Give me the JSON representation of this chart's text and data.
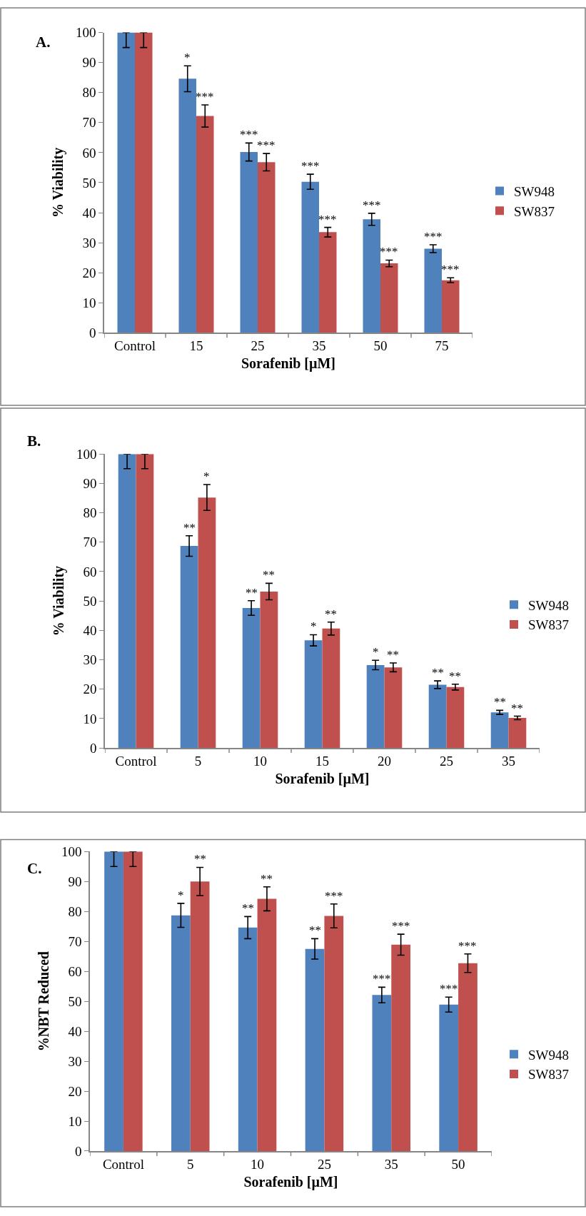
{
  "chart_data": [
    {
      "type": "bar",
      "title": "A.",
      "xlabel": "Sorafenib [µM]",
      "ylabel": "% Viability",
      "categories": [
        "Control",
        "15",
        "25",
        "35",
        "50",
        "75"
      ],
      "ylim": [
        0,
        100
      ],
      "yticks": [
        0,
        10,
        20,
        30,
        40,
        50,
        60,
        70,
        80,
        90,
        100
      ],
      "legend": "right",
      "series": [
        {
          "name": "SW948",
          "color": "#4f81bd",
          "values": [
            100,
            84.6,
            60.2,
            50.3,
            37.8,
            28
          ],
          "errors": [
            [
              95,
              100
            ],
            4.3,
            3,
            2.5,
            2,
            1.3
          ]
        },
        {
          "name": "SW837",
          "color": "#c0504d",
          "values": [
            100,
            72.2,
            56.8,
            33.5,
            23.1,
            17.5
          ],
          "errors": [
            [
              95,
              100
            ],
            3.7,
            2.9,
            1.6,
            1.1,
            0.8
          ]
        }
      ],
      "annotations": [
        {
          "text": "*",
          "x": "15",
          "y": 84.6
        },
        {
          "text": "***",
          "x": "15",
          "y": 72.2
        },
        {
          "text": "***",
          "x": "25",
          "y": 60.2
        },
        {
          "text": "***",
          "x": "25",
          "y": 56.8
        },
        {
          "text": "***",
          "x": "35",
          "y": 50.3
        },
        {
          "text": "***",
          "x": "35",
          "y": 33.5
        },
        {
          "text": "***",
          "x": "50",
          "y": 37.8
        },
        {
          "text": "***",
          "x": "50",
          "y": 23.1
        },
        {
          "text": "***",
          "x": "75",
          "y": 28
        },
        {
          "text": "***",
          "x": "75",
          "y": 17.5
        }
      ]
    },
    {
      "type": "bar",
      "title": "B.",
      "xlabel": "Sorafenib [µM]",
      "ylabel": "% Viability",
      "categories": [
        "Control",
        "5",
        "10",
        "15",
        "20",
        "25",
        "35"
      ],
      "ylim": [
        0,
        100
      ],
      "yticks": [
        0,
        10,
        20,
        30,
        40,
        50,
        60,
        70,
        80,
        90,
        100
      ],
      "legend": "right",
      "series": [
        {
          "name": "SW948",
          "color": "#4f81bd",
          "values": [
            100,
            68.7,
            47.6,
            36.6,
            28.2,
            21.5,
            12.1
          ],
          "errors": [
            [
              95,
              100
            ],
            3.5,
            2.5,
            1.9,
            1.6,
            1.3,
            0.7
          ]
        },
        {
          "name": "SW837",
          "color": "#c0504d",
          "values": [
            100,
            85.2,
            53.2,
            40.6,
            27.4,
            20.7,
            10.2
          ],
          "errors": [
            [
              95,
              100
            ],
            4.4,
            2.8,
            2.2,
            1.5,
            1.0,
            0.6
          ]
        }
      ],
      "annotations": [
        {
          "text": "**",
          "x": "5",
          "y": 68.7
        },
        {
          "text": "*",
          "x": "5",
          "y": 85.2
        },
        {
          "text": "**",
          "x": "10",
          "y": 47.6
        },
        {
          "text": "**",
          "x": "10",
          "y": 53.2
        },
        {
          "text": "*",
          "x": "15",
          "y": 36.6
        },
        {
          "text": "**",
          "x": "15",
          "y": 40.6
        },
        {
          "text": "*",
          "x": "20",
          "y": 28.2
        },
        {
          "text": "**",
          "x": "20",
          "y": 27.4
        },
        {
          "text": "**",
          "x": "25",
          "y": 21.5
        },
        {
          "text": "**",
          "x": "25",
          "y": 20.7
        },
        {
          "text": "**",
          "x": "35",
          "y": 12.1
        },
        {
          "text": "**",
          "x": "35",
          "y": 10.2
        }
      ]
    },
    {
      "type": "bar",
      "title": "C.",
      "xlabel": "Sorafenib [µM]",
      "ylabel": "%NBT Reduced",
      "categories": [
        "Control",
        "5",
        "10",
        "25",
        "35",
        "50"
      ],
      "ylim": [
        0,
        100
      ],
      "yticks": [
        0,
        10,
        20,
        30,
        40,
        50,
        60,
        70,
        80,
        90,
        100
      ],
      "legend": "right",
      "series": [
        {
          "name": "SW948",
          "color": "#4f81bd",
          "values": [
            100,
            78.7,
            74.6,
            67.5,
            52.1,
            48.9
          ],
          "errors": [
            [
              95,
              100
            ],
            4,
            3.7,
            3.4,
            2.6,
            2.5
          ]
        },
        {
          "name": "SW837",
          "color": "#c0504d",
          "values": [
            100,
            90.0,
            84.2,
            78.5,
            68.9,
            62.7
          ],
          "errors": [
            [
              95,
              100
            ],
            4.7,
            4,
            4,
            3.5,
            3.1
          ]
        }
      ],
      "annotations": [
        {
          "text": "*",
          "x": "5",
          "y": 78.7
        },
        {
          "text": "**",
          "x": "5",
          "y": 90.0
        },
        {
          "text": "**",
          "x": "10",
          "y": 74.6
        },
        {
          "text": "**",
          "x": "10",
          "y": 84.2
        },
        {
          "text": "**",
          "x": "25",
          "y": 67.5
        },
        {
          "text": "***",
          "x": "25",
          "y": 78.5
        },
        {
          "text": "***",
          "x": "35",
          "y": 52.1
        },
        {
          "text": "***",
          "x": "35",
          "y": 68.9
        },
        {
          "text": "***",
          "x": "50",
          "y": 48.9
        },
        {
          "text": "***",
          "x": "50",
          "y": 62.7
        }
      ]
    }
  ]
}
